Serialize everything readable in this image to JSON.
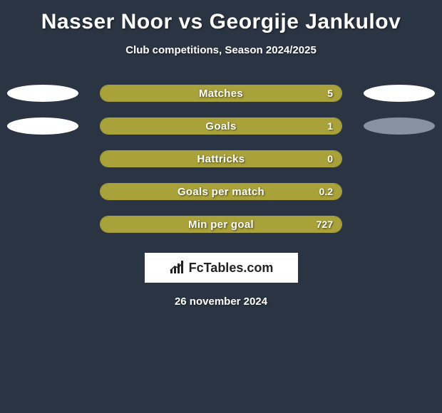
{
  "title": "Nasser Noor vs Georgije Jankulov",
  "subtitle": "Club competitions, Season 2024/2025",
  "colors": {
    "background": "#2b3442",
    "bar_full": "#a9a13a",
    "bar_border": "#a9a13a",
    "ellipse_left": "#ffffff",
    "ellipse_right": "#ffffff",
    "ellipse_right_muted": "#8891a0",
    "text": "#ffffff"
  },
  "stats": [
    {
      "label": "Matches",
      "value": "5",
      "fill_pct": 100,
      "show_ellipses": true,
      "right_bright": true
    },
    {
      "label": "Goals",
      "value": "1",
      "fill_pct": 100,
      "show_ellipses": true,
      "right_bright": false
    },
    {
      "label": "Hattricks",
      "value": "0",
      "fill_pct": 100,
      "show_ellipses": false,
      "right_bright": false
    },
    {
      "label": "Goals per match",
      "value": "0.2",
      "fill_pct": 100,
      "show_ellipses": false,
      "right_bright": false
    },
    {
      "label": "Min per goal",
      "value": "727",
      "fill_pct": 100,
      "show_ellipses": false,
      "right_bright": false
    }
  ],
  "logo_text": "FcTables.com",
  "date": "26 november 2024"
}
